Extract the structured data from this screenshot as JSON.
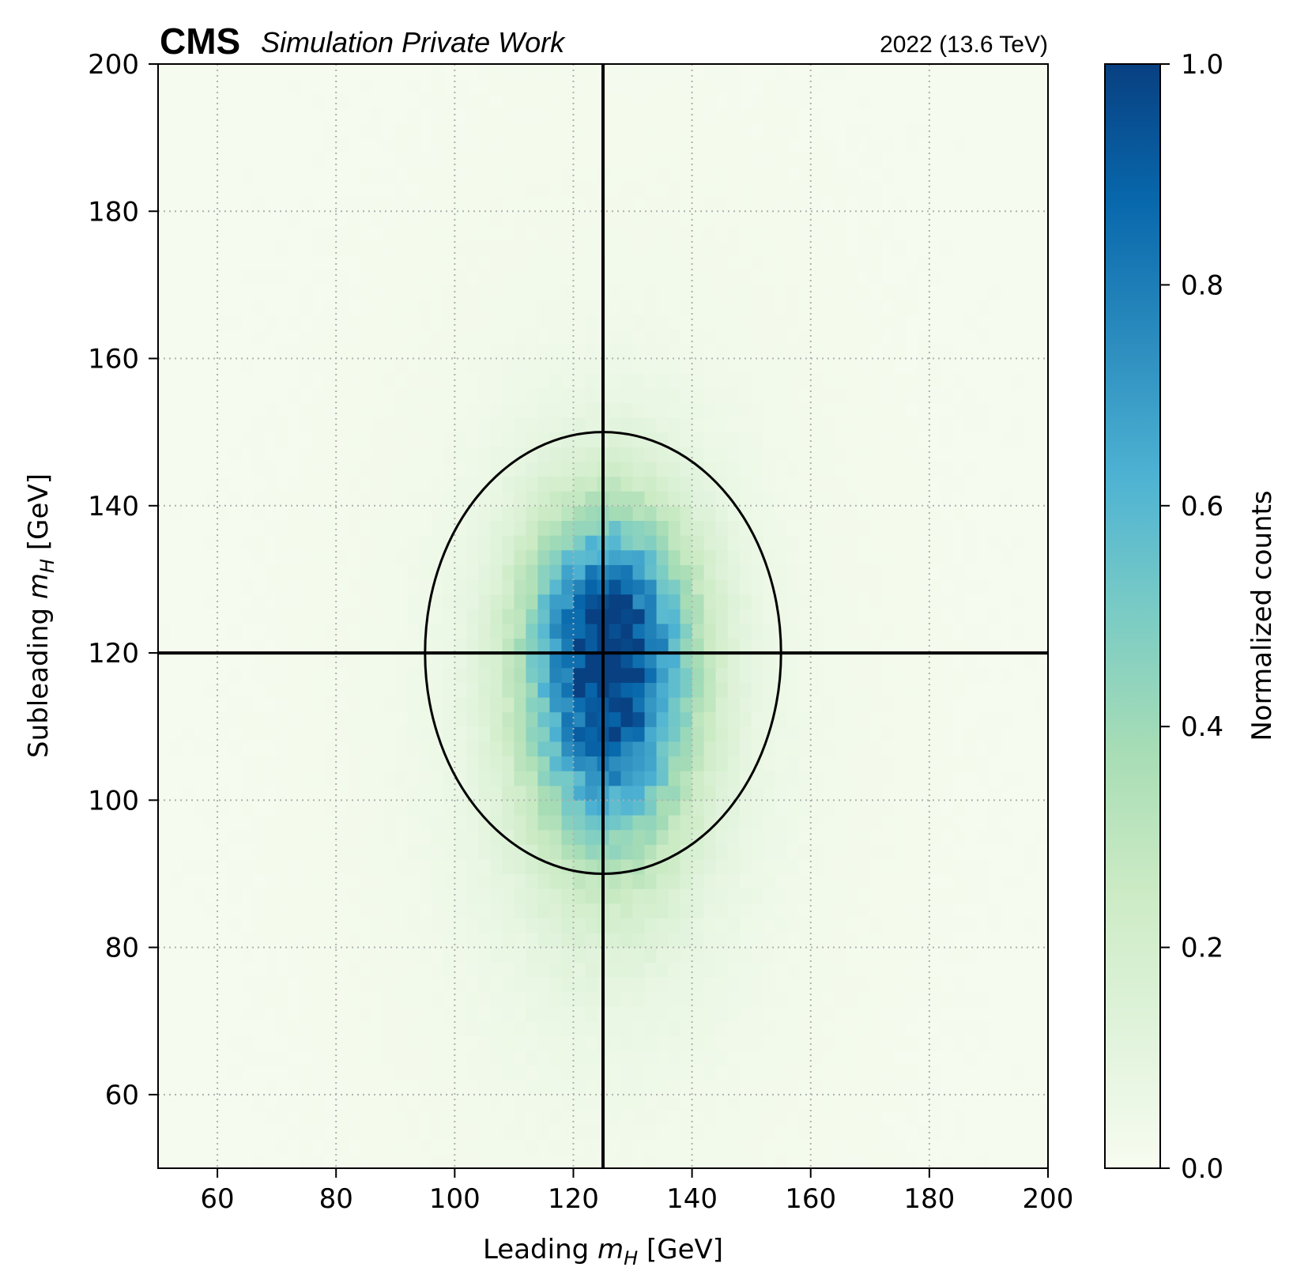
{
  "header": {
    "experiment": "CMS",
    "subtitle": "Simulation Private Work",
    "lumi": "2022 (13.6 TeV)"
  },
  "chart_data": {
    "type": "heatmap",
    "xlabel_prefix": "Leading ",
    "xlabel_var": "m",
    "xlabel_sub": "H",
    "xlabel_suffix": " [GeV]",
    "ylabel_prefix": "Subleading ",
    "ylabel_var": "m",
    "ylabel_sub": "H",
    "ylabel_suffix": " [GeV]",
    "xlim": [
      50,
      200
    ],
    "ylim": [
      50,
      200
    ],
    "xticks": [
      60,
      80,
      100,
      120,
      140,
      160,
      180,
      200
    ],
    "yticks": [
      60,
      80,
      100,
      120,
      140,
      160,
      180,
      200
    ],
    "xtick_labels": [
      "60",
      "80",
      "100",
      "120",
      "140",
      "160",
      "180",
      "200"
    ],
    "ytick_labels": [
      "60",
      "80",
      "100",
      "120",
      "140",
      "160",
      "180",
      "200"
    ],
    "grid": true,
    "bin_width": 2,
    "peak": {
      "x": 126,
      "y": 120,
      "sigma_x": 9.5,
      "sigma_y": 13,
      "tail_sigma_y_low": 18
    },
    "colorbar": {
      "label": "Normalized counts",
      "range": [
        0,
        1
      ],
      "ticks": [
        0.0,
        0.2,
        0.4,
        0.6,
        0.8,
        1.0
      ],
      "tick_labels": [
        "0.0",
        "0.2",
        "0.4",
        "0.6",
        "0.8",
        "1.0"
      ],
      "colormap": "GnBu",
      "colors": [
        "#f7fcf0",
        "#e0f3db",
        "#ccebc5",
        "#a8ddb5",
        "#7bccc4",
        "#4eb3d3",
        "#2b8cbe",
        "#0868ac",
        "#084081"
      ]
    },
    "overlays": {
      "vertical_line_x": 125,
      "horizontal_line_y": 120,
      "ellipse": {
        "center_x": 125,
        "center_y": 120,
        "radius_x": 30,
        "radius_y": 30
      }
    }
  }
}
